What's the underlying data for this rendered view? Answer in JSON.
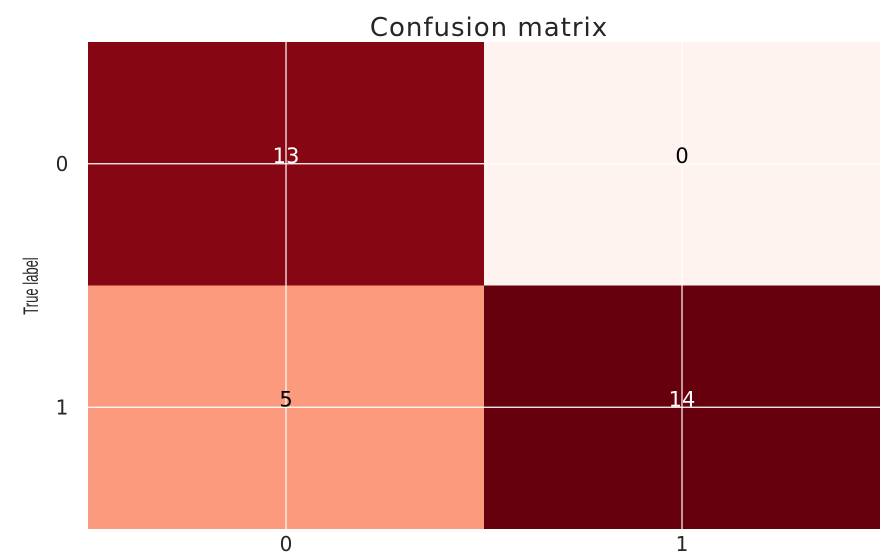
{
  "chart_data": {
    "type": "heatmap",
    "title": "Confusion matrix",
    "ylabel": "True label",
    "xlabel": "",
    "x_categories": [
      "0",
      "1"
    ],
    "y_categories": [
      "0",
      "1"
    ],
    "values": [
      [
        13,
        0
      ],
      [
        5,
        14
      ]
    ],
    "colormap": "Reds",
    "cell_colors": [
      [
        "#860713",
        "#fff3ef"
      ],
      [
        "#fb9a7c",
        "#67000d"
      ]
    ],
    "text_colors": [
      [
        "#ffffff",
        "#000000"
      ],
      [
        "#000000",
        "#ffffff"
      ]
    ],
    "grid": true,
    "grid_color": "#ffffff"
  }
}
